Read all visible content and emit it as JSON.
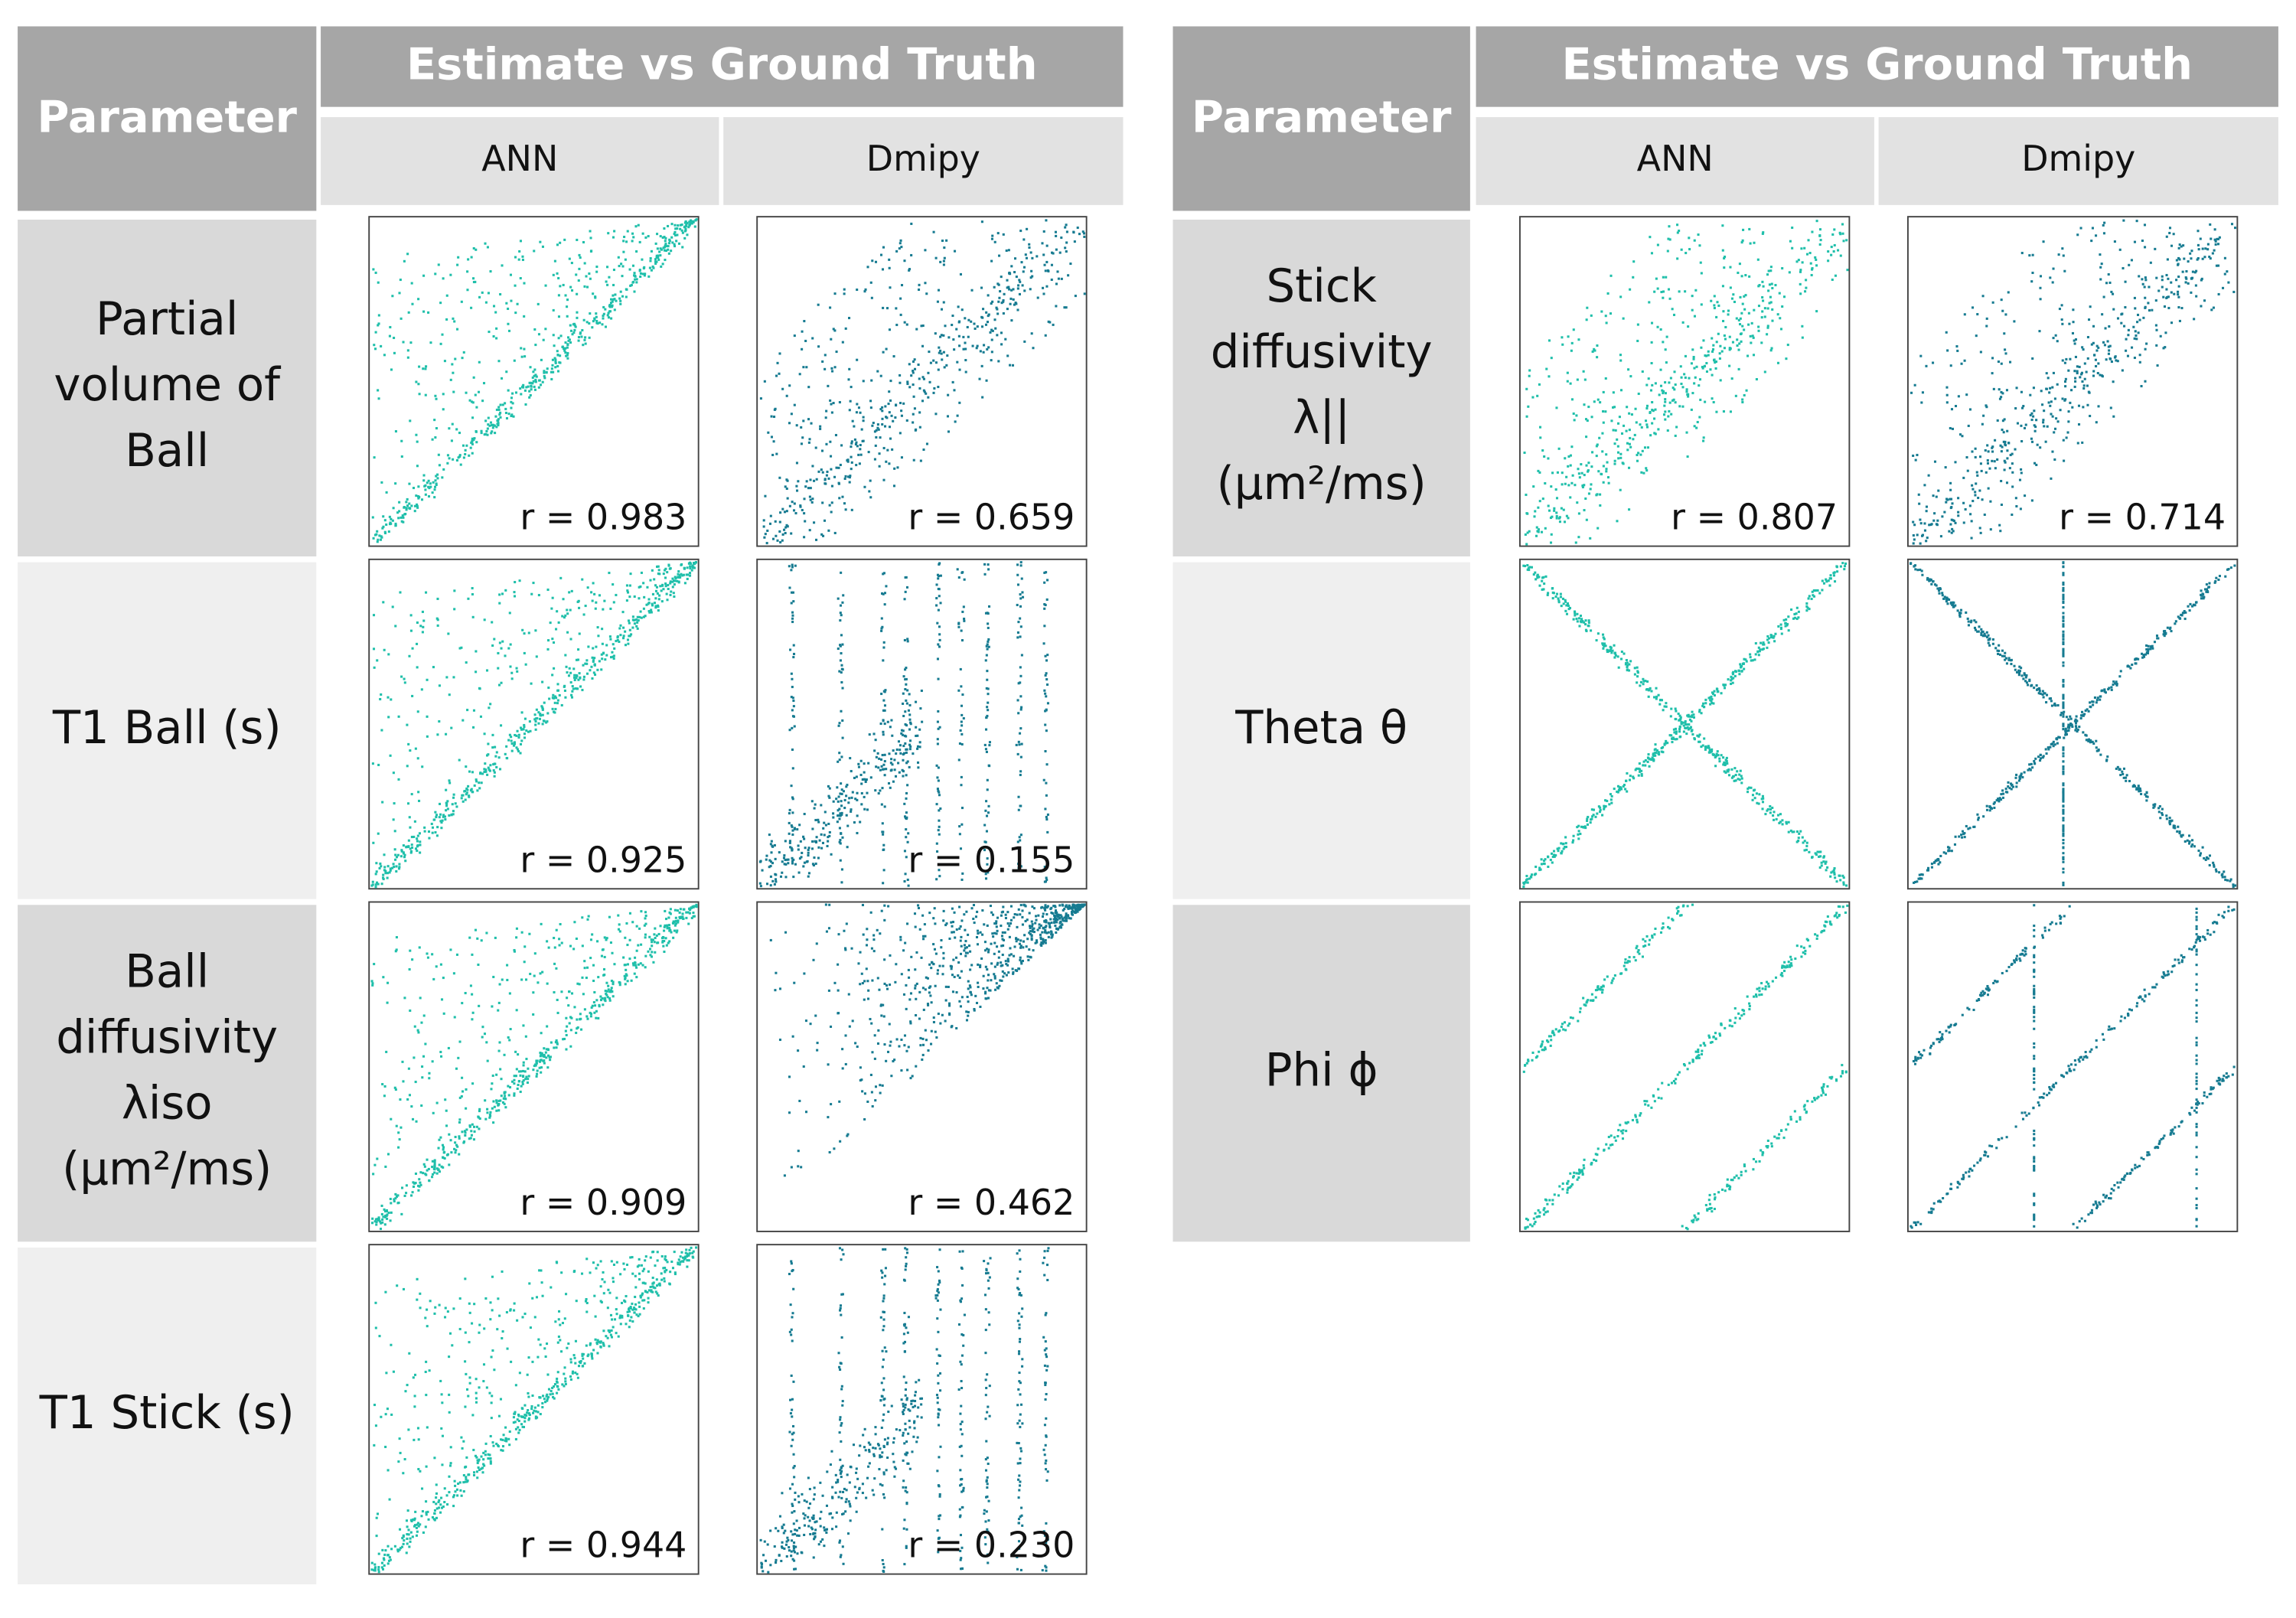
{
  "tables": [
    {
      "header": {
        "parameter": "Parameter",
        "group": "Estimate vs Ground Truth",
        "columns": [
          "ANN",
          "Dmipy"
        ]
      },
      "rows": [
        {
          "label": [
            "Partial",
            "volume of",
            "Ball"
          ],
          "r": [
            "r = 0.983",
            "r = 0.659"
          ]
        },
        {
          "label": [
            "T1 Ball (s)"
          ],
          "r": [
            "r = 0.925",
            "r = 0.155"
          ]
        },
        {
          "label": [
            "Ball",
            "diffusivity",
            "λiso",
            "(μm²/ms)"
          ],
          "r": [
            "r = 0.909",
            "r = 0.462"
          ]
        },
        {
          "label": [
            "T1 Stick (s)"
          ],
          "r": [
            "r = 0.944",
            "r = 0.230"
          ]
        }
      ]
    },
    {
      "header": {
        "parameter": "Parameter",
        "group": "Estimate vs Ground Truth",
        "columns": [
          "ANN",
          "Dmipy"
        ]
      },
      "rows": [
        {
          "label": [
            "Stick",
            "diffusivity",
            "λ||",
            "(μm²/ms)"
          ],
          "r": [
            "r = 0.807",
            "r = 0.714"
          ]
        },
        {
          "label": [
            "Theta θ"
          ],
          "r": [
            "",
            ""
          ]
        },
        {
          "label": [
            "Phi ϕ"
          ],
          "r": [
            "",
            ""
          ]
        }
      ]
    }
  ]
}
